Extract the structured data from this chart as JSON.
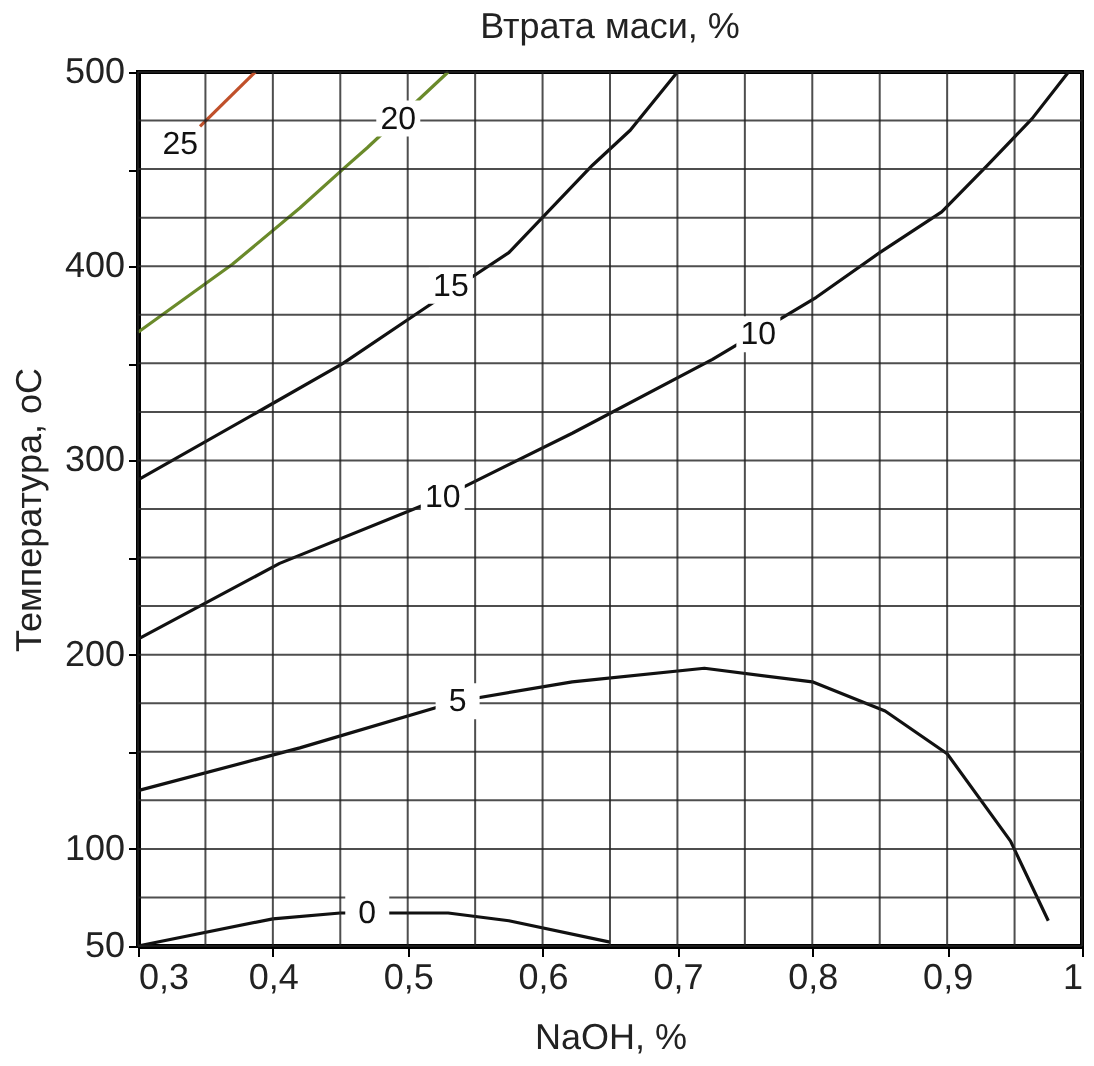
{
  "chart_data": {
    "type": "line",
    "title": "Втрата маси, %",
    "xlabel": "NaOH, %",
    "ylabel": "Температура, оС",
    "xlim": [
      0.3,
      1
    ],
    "ylim": [
      50,
      500
    ],
    "xticks": [
      {
        "value": 0.3,
        "label": "0,3"
      },
      {
        "value": 0.35,
        "label": null
      },
      {
        "value": 0.4,
        "label": "0,4"
      },
      {
        "value": 0.45,
        "label": null
      },
      {
        "value": 0.5,
        "label": "0,5"
      },
      {
        "value": 0.55,
        "label": null
      },
      {
        "value": 0.6,
        "label": "0,6"
      },
      {
        "value": 0.65,
        "label": null
      },
      {
        "value": 0.7,
        "label": "0,7"
      },
      {
        "value": 0.75,
        "label": null
      },
      {
        "value": 0.8,
        "label": "0,8"
      },
      {
        "value": 0.85,
        "label": null
      },
      {
        "value": 0.9,
        "label": "0,9"
      },
      {
        "value": 0.95,
        "label": null
      },
      1
    ],
    "yticks": [
      50,
      {
        "value": 75,
        "label": null
      },
      100,
      {
        "value": 125,
        "label": null
      },
      {
        "value": 150,
        "label": null
      },
      {
        "value": 175,
        "label": null
      },
      200,
      {
        "value": 225,
        "label": null
      },
      {
        "value": 250,
        "label": null
      },
      {
        "value": 275,
        "label": null
      },
      300,
      {
        "value": 325,
        "label": null
      },
      {
        "value": 350,
        "label": null
      },
      {
        "value": 375,
        "label": null
      },
      400,
      {
        "value": 425,
        "label": null
      },
      {
        "value": 450,
        "label": null
      },
      {
        "value": 475,
        "label": null
      },
      500
    ],
    "grid": true,
    "marker": "none",
    "line_style": "solid",
    "series": [
      {
        "color": "#111111",
        "x": [
          0.3,
          0.4,
          0.45,
          0.53,
          0.575,
          0.65
        ],
        "values": [
          50,
          64,
          67,
          67,
          63,
          52
        ]
      },
      {
        "color": "#111111",
        "x": [
          0.3,
          0.42,
          0.537,
          0.622,
          0.72,
          0.8,
          0.854,
          0.9,
          0.947,
          0.975
        ],
        "values": [
          130,
          152,
          176,
          186,
          193,
          186,
          171,
          149,
          104,
          63
        ]
      },
      {
        "color": "#111111",
        "x": [
          0.3,
          0.405,
          0.526,
          0.622,
          0.726,
          0.803,
          0.85,
          0.896,
          0.93,
          0.963,
          0.99
        ],
        "values": [
          208,
          247,
          281,
          314,
          352,
          384,
          407,
          428,
          452,
          476,
          500
        ]
      },
      {
        "color": "#111111",
        "x": [
          0.3,
          0.394,
          0.452,
          0.514,
          0.575,
          0.637,
          0.665,
          0.7
        ],
        "values": [
          290,
          327,
          350,
          379,
          407,
          452,
          470,
          500
        ]
      },
      {
        "color": "#6a8a2a",
        "x": [
          0.3,
          0.37,
          0.42,
          0.452,
          0.47,
          0.53
        ],
        "values": [
          366,
          401,
          430,
          450,
          461,
          500
        ]
      },
      {
        "color": "#c0502a",
        "x": [
          0.346,
          0.387
        ],
        "values": [
          472,
          500
        ]
      }
    ],
    "annotations": [
      {
        "text": "0",
        "x": 0.47,
        "y": 67
      },
      {
        "text": "5",
        "x": 0.537,
        "y": 176
      },
      {
        "text": "10",
        "x": 0.526,
        "y": 281
      },
      {
        "text": "10",
        "x": 0.76,
        "y": 365
      },
      {
        "text": "15",
        "x": 0.532,
        "y": 390
      },
      {
        "text": "20",
        "x": 0.493,
        "y": 476
      },
      {
        "text": "25",
        "x": 0.346,
        "y": 472
      }
    ]
  }
}
